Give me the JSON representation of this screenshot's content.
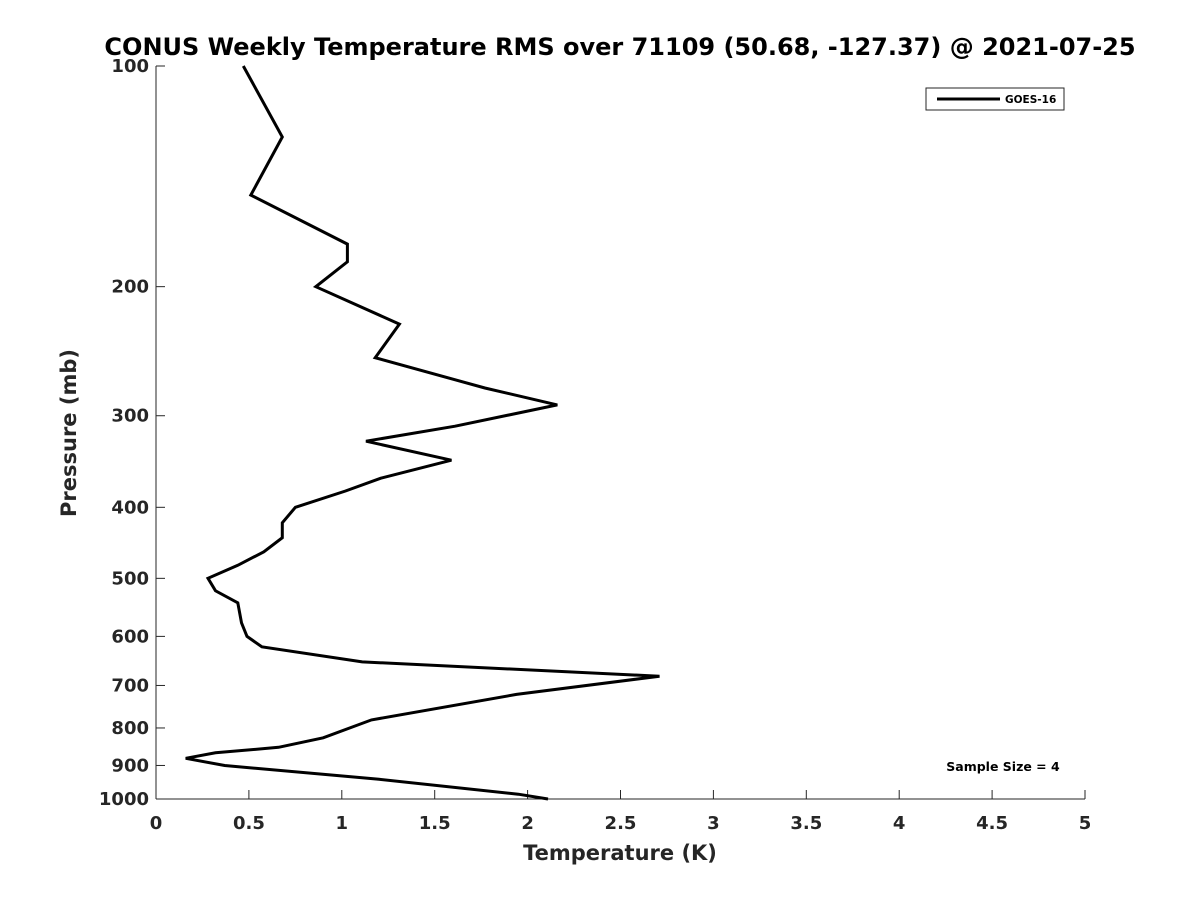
{
  "chart_data": {
    "type": "line",
    "title": "CONUS Weekly Temperature RMS over 71109 (50.68, -127.37) @ 2021-07-25",
    "xlabel": "Temperature (K)",
    "ylabel": "Pressure (mb)",
    "xlim": [
      0,
      5
    ],
    "ylim": [
      100,
      1000
    ],
    "y_scale": "log",
    "y_reversed": true,
    "x_ticks": [
      "0",
      "0.5",
      "1",
      "1.5",
      "2",
      "2.5",
      "3",
      "3.5",
      "4",
      "4.5",
      "5"
    ],
    "y_ticks": [
      "100",
      "200",
      "300",
      "400",
      "500",
      "600",
      "700",
      "800",
      "900",
      "1000"
    ],
    "grid": false,
    "legend_position": "top-right",
    "annotation": "Sample Size = 4",
    "series": [
      {
        "name": "GOES-16",
        "color": "#000000",
        "x": [
          0.47,
          0.68,
          0.51,
          1.03,
          1.03,
          0.86,
          1.31,
          1.18,
          1.77,
          2.16,
          1.61,
          1.13,
          1.59,
          1.21,
          1.02,
          0.75,
          0.68,
          0.68,
          0.58,
          0.44,
          0.28,
          0.32,
          0.44,
          0.46,
          0.49,
          0.57,
          1.11,
          2.71,
          1.94,
          1.16,
          0.9,
          0.66,
          0.32,
          0.16,
          0.37,
          1.2,
          1.95,
          2.11
        ],
        "y": [
          100,
          125,
          150,
          175,
          185,
          200,
          225,
          250,
          275,
          290,
          310,
          325,
          345,
          365,
          380,
          400,
          420,
          440,
          460,
          480,
          500,
          520,
          540,
          575,
          600,
          620,
          650,
          680,
          720,
          780,
          825,
          850,
          865,
          880,
          900,
          940,
          985,
          1000
        ]
      }
    ]
  }
}
